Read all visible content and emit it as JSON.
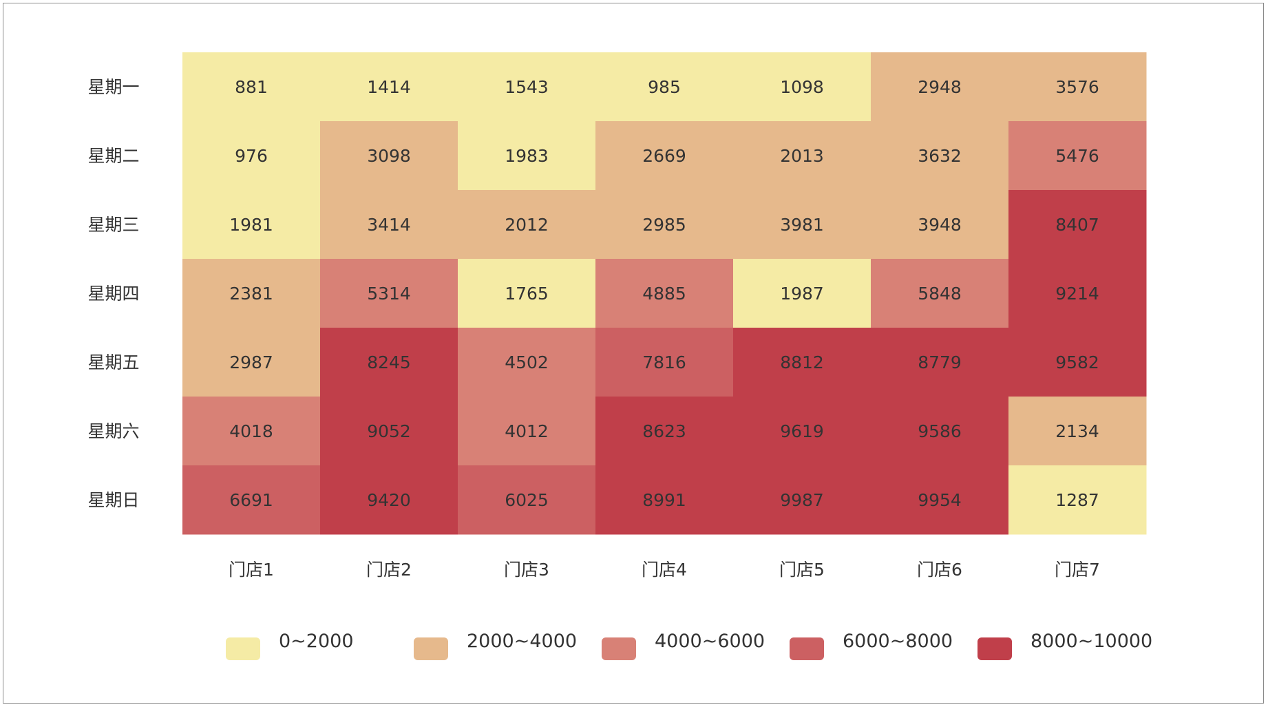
{
  "chart_data": {
    "type": "heatmap",
    "x_categories": [
      "门店1",
      "门店2",
      "门店3",
      "门店4",
      "门店5",
      "门店6",
      "门店7"
    ],
    "y_categories": [
      "星期一",
      "星期二",
      "星期三",
      "星期四",
      "星期五",
      "星期六",
      "星期日"
    ],
    "values": [
      [
        881,
        1414,
        1543,
        985,
        1098,
        2948,
        3576
      ],
      [
        976,
        3098,
        1983,
        2669,
        2013,
        3632,
        5476
      ],
      [
        1981,
        3414,
        2012,
        2985,
        3981,
        3948,
        8407
      ],
      [
        2381,
        5314,
        1765,
        4885,
        1987,
        5848,
        9214
      ],
      [
        2987,
        8245,
        4502,
        7816,
        8812,
        8779,
        9582
      ],
      [
        4018,
        9052,
        4012,
        8623,
        9619,
        9586,
        2134
      ],
      [
        6691,
        9420,
        6025,
        8991,
        9987,
        9954,
        1287
      ]
    ],
    "legend": {
      "placement": "bottom",
      "ranges": [
        {
          "label": "0~2000",
          "min": 0,
          "max": 2000,
          "color": "#f5eba5"
        },
        {
          "label": "2000~4000",
          "min": 2000,
          "max": 4000,
          "color": "#e6b98c"
        },
        {
          "label": "4000~6000",
          "min": 4000,
          "max": 6000,
          "color": "#d88176"
        },
        {
          "label": "6000~8000",
          "min": 6000,
          "max": 8000,
          "color": "#cc6062"
        },
        {
          "label": "8000~10000",
          "min": 8000,
          "max": 10000,
          "color": "#c03f4a"
        }
      ]
    }
  }
}
